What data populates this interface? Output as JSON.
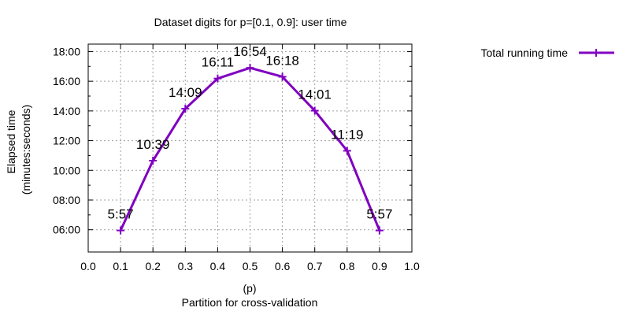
{
  "chart_data": {
    "type": "line",
    "title": "Dataset digits for p=[0.1, 0.9]: user time",
    "xlabel_line1": "(p)",
    "xlabel_line2": "Partition for cross-validation",
    "ylabel_line1": "Elapsed time",
    "ylabel_line2": "(minutes:seconds)",
    "xlim": [
      0.0,
      1.0
    ],
    "ylim_seconds": [
      270,
      1110
    ],
    "x_ticks": [
      "0.0",
      "0.1",
      "0.2",
      "0.3",
      "0.4",
      "0.5",
      "0.6",
      "0.7",
      "0.8",
      "0.9",
      "1.0"
    ],
    "y_ticks": [
      "06:00",
      "08:00",
      "10:00",
      "12:00",
      "14:00",
      "16:00",
      "18:00"
    ],
    "grid": true,
    "legend_position": "outside-top-right",
    "series": [
      {
        "name": "Total running time",
        "color": "#8000c0",
        "marker": "plus",
        "x": [
          0.1,
          0.2,
          0.3,
          0.4,
          0.5,
          0.6,
          0.7,
          0.8,
          0.9
        ],
        "y_seconds": [
          357,
          639,
          849,
          971,
          1014,
          978,
          841,
          679,
          357
        ],
        "labels": [
          "5:57",
          "10:39",
          "14:09",
          "16:11",
          "16:54",
          "16:18",
          "14:01",
          "11:19",
          "5:57"
        ]
      }
    ]
  }
}
